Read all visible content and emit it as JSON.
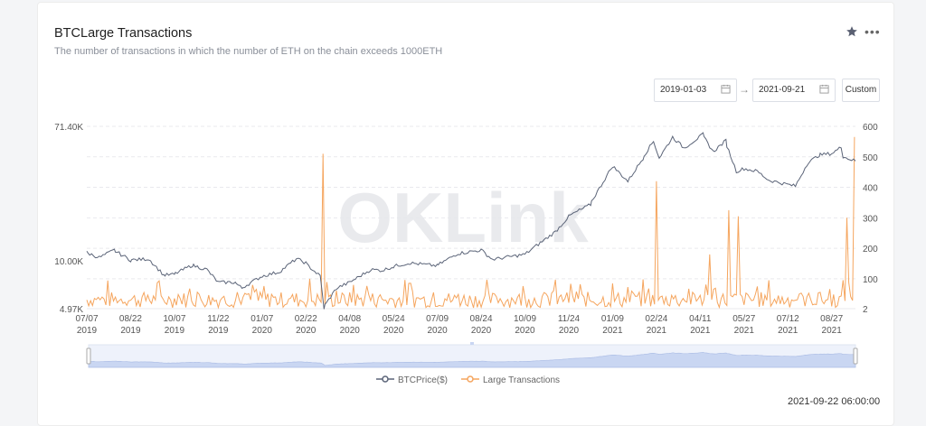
{
  "header": {
    "title": "BTCLarge Transactions",
    "subtitle": "The number of transactions in which the number of ETH on the chain exceeds 1000ETH",
    "star_icon": "star-icon",
    "more_icon": "more-icon",
    "more_glyph": "•••"
  },
  "date_range": {
    "start": "2019-01-03",
    "end": "2021-09-21",
    "arrow": "→",
    "custom_label": "Custom",
    "calendar_icon": "calendar-icon"
  },
  "watermark": "OKLink",
  "footer": {
    "timestamp": "2021-09-22 06:00:00"
  },
  "chart_data": {
    "type": "line",
    "title": "",
    "x_start": "2019-07-07",
    "x_end": "2021-09-21",
    "x_ticks": [
      {
        "date": "2019-07-07",
        "label": "07/07",
        "year": "2019"
      },
      {
        "date": "2019-08-22",
        "label": "08/22",
        "year": "2019"
      },
      {
        "date": "2019-10-07",
        "label": "10/07",
        "year": "2019"
      },
      {
        "date": "2019-11-22",
        "label": "11/22",
        "year": "2019"
      },
      {
        "date": "2020-01-07",
        "label": "01/07",
        "year": "2020"
      },
      {
        "date": "2020-02-22",
        "label": "02/22",
        "year": "2020"
      },
      {
        "date": "2020-04-08",
        "label": "04/08",
        "year": "2020"
      },
      {
        "date": "2020-05-24",
        "label": "05/24",
        "year": "2020"
      },
      {
        "date": "2020-07-09",
        "label": "07/09",
        "year": "2020"
      },
      {
        "date": "2020-08-24",
        "label": "08/24",
        "year": "2020"
      },
      {
        "date": "2020-10-09",
        "label": "10/09",
        "year": "2020"
      },
      {
        "date": "2020-11-24",
        "label": "11/24",
        "year": "2020"
      },
      {
        "date": "2021-01-09",
        "label": "01/09",
        "year": "2021"
      },
      {
        "date": "2021-02-24",
        "label": "02/24",
        "year": "2021"
      },
      {
        "date": "2021-04-11",
        "label": "04/11",
        "year": "2021"
      },
      {
        "date": "2021-05-27",
        "label": "05/27",
        "year": "2021"
      },
      {
        "date": "2021-07-12",
        "label": "07/12",
        "year": "2021"
      },
      {
        "date": "2021-08-27",
        "label": "08/27",
        "year": "2021"
      }
    ],
    "y_left": {
      "scale": "log",
      "min": 4970,
      "max": 71400,
      "tick_labels": [
        {
          "value": 71400,
          "label": "71.40K"
        },
        {
          "value": 10000,
          "label": "10.00K"
        },
        {
          "value": 4970,
          "label": "4.97K"
        }
      ]
    },
    "y_right": {
      "min": 2,
      "max": 600,
      "ticks": [
        600,
        500,
        400,
        300,
        200,
        100,
        2
      ]
    },
    "grid": true,
    "legend_position": "bottom-center",
    "series": [
      {
        "name": "BTCPrice($)",
        "axis": "left",
        "color": "#5b6478",
        "points": [
          [
            "2019-07-07",
            11300
          ],
          [
            "2019-07-20",
            10500
          ],
          [
            "2019-08-05",
            11700
          ],
          [
            "2019-08-22",
            10100
          ],
          [
            "2019-09-10",
            10300
          ],
          [
            "2019-09-26",
            8100
          ],
          [
            "2019-10-07",
            8200
          ],
          [
            "2019-10-26",
            9400
          ],
          [
            "2019-11-10",
            8800
          ],
          [
            "2019-11-22",
            7300
          ],
          [
            "2019-12-10",
            7300
          ],
          [
            "2019-12-17",
            6700
          ],
          [
            "2020-01-07",
            8000
          ],
          [
            "2020-01-25",
            8500
          ],
          [
            "2020-02-12",
            10300
          ],
          [
            "2020-02-22",
            9700
          ],
          [
            "2020-03-08",
            8000
          ],
          [
            "2020-03-12",
            5000
          ],
          [
            "2020-03-25",
            6700
          ],
          [
            "2020-04-08",
            7300
          ],
          [
            "2020-04-30",
            8800
          ],
          [
            "2020-05-12",
            8700
          ],
          [
            "2020-05-24",
            9200
          ],
          [
            "2020-06-10",
            9700
          ],
          [
            "2020-07-09",
            9300
          ],
          [
            "2020-07-30",
            11100
          ],
          [
            "2020-08-24",
            11700
          ],
          [
            "2020-09-05",
            10200
          ],
          [
            "2020-10-09",
            11000
          ],
          [
            "2020-10-25",
            13000
          ],
          [
            "2020-11-10",
            15300
          ],
          [
            "2020-11-24",
            19100
          ],
          [
            "2020-12-17",
            22800
          ],
          [
            "2021-01-09",
            40000
          ],
          [
            "2021-01-25",
            32000
          ],
          [
            "2021-02-10",
            44800
          ],
          [
            "2021-02-21",
            57500
          ],
          [
            "2021-02-27",
            45000
          ],
          [
            "2021-03-13",
            61000
          ],
          [
            "2021-03-25",
            52000
          ],
          [
            "2021-04-14",
            63500
          ],
          [
            "2021-04-25",
            49000
          ],
          [
            "2021-05-08",
            58000
          ],
          [
            "2021-05-19",
            37000
          ],
          [
            "2021-05-27",
            38500
          ],
          [
            "2021-06-10",
            37000
          ],
          [
            "2021-06-22",
            32500
          ],
          [
            "2021-07-20",
            29800
          ],
          [
            "2021-08-01",
            41000
          ],
          [
            "2021-08-14",
            47000
          ],
          [
            "2021-08-27",
            48000
          ],
          [
            "2021-09-06",
            52600
          ],
          [
            "2021-09-08",
            46000
          ],
          [
            "2021-09-21",
            43000
          ]
        ]
      },
      {
        "name": "Large Transactions",
        "axis": "right",
        "color": "#f5a55e",
        "baseline_range": [
          5,
          100
        ],
        "spikes": [
          [
            "2020-03-12",
            510
          ],
          [
            "2020-02-27",
            100
          ],
          [
            "2020-04-12",
            80
          ],
          [
            "2021-02-24",
            420
          ],
          [
            "2021-04-22",
            180
          ],
          [
            "2021-05-12",
            325
          ],
          [
            "2021-05-22",
            305
          ],
          [
            "2021-09-13",
            300
          ],
          [
            "2021-09-21",
            565
          ]
        ]
      }
    ]
  }
}
